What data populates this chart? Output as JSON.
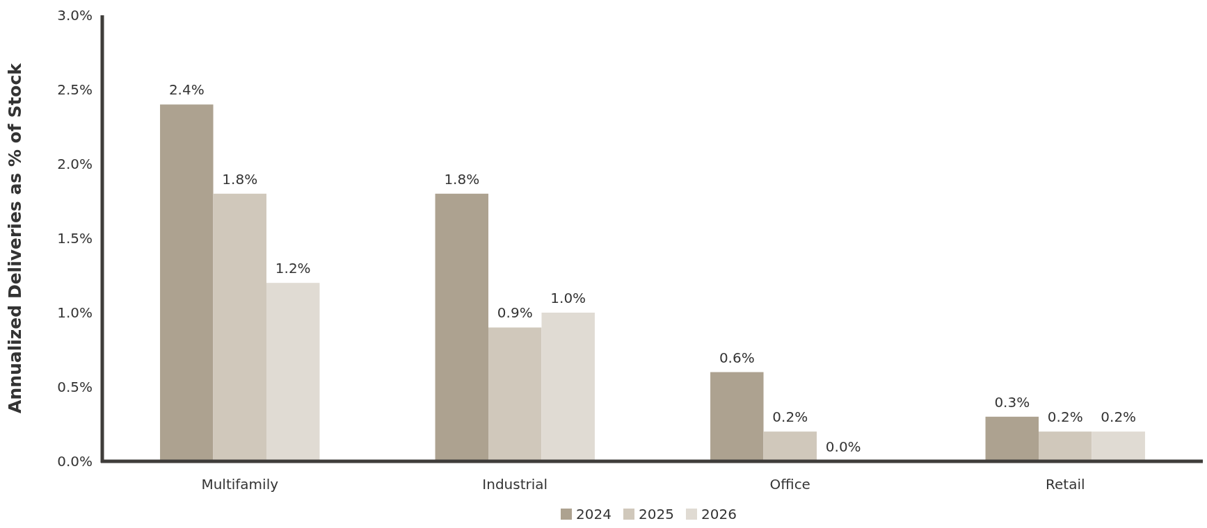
{
  "chart_data": {
    "type": "bar",
    "ylabel": "Annualized Deliveries as % of Stock",
    "categories": [
      "Multifamily",
      "Industrial",
      "Office",
      "Retail"
    ],
    "series": [
      {
        "name": "2024",
        "color": "#ada290",
        "values": [
          2.4,
          1.8,
          0.6,
          0.3
        ]
      },
      {
        "name": "2025",
        "color": "#d0c8bb",
        "values": [
          1.8,
          0.9,
          0.2,
          0.2
        ]
      },
      {
        "name": "2026",
        "color": "#e0dbd3",
        "values": [
          1.2,
          1.0,
          0.0,
          0.2
        ]
      }
    ],
    "ylim": [
      0,
      3
    ],
    "yticks": [
      {
        "value": 0,
        "label": "0.0%"
      },
      {
        "value": 0.5,
        "label": "0.5%"
      },
      {
        "value": 1,
        "label": "1.0%"
      },
      {
        "value": 1.5,
        "label": "1.5%"
      },
      {
        "value": 2,
        "label": "2.0%"
      },
      {
        "value": 2.5,
        "label": "2.5%"
      },
      {
        "value": 3,
        "label": "3.0%"
      }
    ],
    "value_labels": [
      [
        "2.4%",
        "1.8%",
        "0.6%",
        "0.3%"
      ],
      [
        "1.8%",
        "0.9%",
        "0.2%",
        "0.2%"
      ],
      [
        "1.2%",
        "1.0%",
        "0.0%",
        "0.2%"
      ]
    ],
    "grid": false,
    "legend": "bottom"
  }
}
